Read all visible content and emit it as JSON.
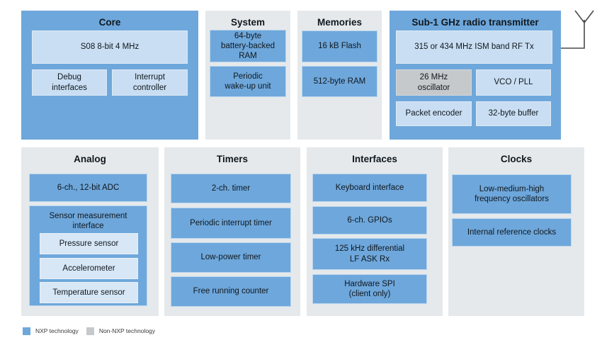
{
  "diagram": {
    "core": {
      "title": "Core",
      "s08": [
        "S08 8-bit 4 MHz"
      ],
      "debug": [
        "Debug",
        "interfaces"
      ],
      "interrupt": [
        "Interrupt",
        "controller"
      ]
    },
    "system": {
      "title": "System",
      "battery_ram": [
        "64-byte",
        "battery-backed",
        "RAM"
      ],
      "wakeup": [
        "Periodic",
        "wake-up unit"
      ]
    },
    "memories": {
      "title": "Memories",
      "flash": [
        "16 kB Flash"
      ],
      "ram": [
        "512-byte RAM"
      ]
    },
    "radio": {
      "title": "Sub-1 GHz radio transmitter",
      "rf_tx": [
        "315 or 434 MHz ISM band RF Tx"
      ],
      "oscillator": [
        "26 MHz",
        "oscillator"
      ],
      "vco_pll": [
        "VCO / PLL"
      ],
      "packet_encoder": [
        "Packet encoder"
      ],
      "buffer": [
        "32-byte buffer"
      ]
    },
    "analog": {
      "title": "Analog",
      "adc": [
        "6-ch., 12-bit ADC"
      ],
      "smi_label": [
        "Sensor measurement",
        "interface"
      ],
      "pressure": [
        "Pressure sensor"
      ],
      "accelerometer": [
        "Accelerometer"
      ],
      "temperature": [
        "Temperature sensor"
      ]
    },
    "timers": {
      "title": "Timers",
      "t1": [
        "2-ch. timer"
      ],
      "t2": [
        "Periodic interrupt timer"
      ],
      "t3": [
        "Low-power timer"
      ],
      "t4": [
        "Free running counter"
      ]
    },
    "interfaces": {
      "title": "Interfaces",
      "keyboard": [
        "Keyboard interface"
      ],
      "gpio": [
        "6-ch. GPIOs"
      ],
      "lf_ask": [
        "125 kHz differential",
        "LF ASK Rx"
      ],
      "spi": [
        "Hardware SPI",
        "(client only)"
      ]
    },
    "clocks": {
      "title": "Clocks",
      "osc": [
        "Low-medium-high",
        "frequency oscillators"
      ],
      "ref": [
        "Internal reference clocks"
      ]
    }
  },
  "legend": {
    "nxp": "NXP technology",
    "non_nxp": "Non-NXP technology"
  },
  "colors": {
    "nxp_blue": "#6EA7DB",
    "light_blue": "#C9DEF2",
    "pale_blue": "#D8E7F6",
    "group_gray": "#E5E9EB",
    "non_nxp_gray": "#C6C9CB"
  }
}
